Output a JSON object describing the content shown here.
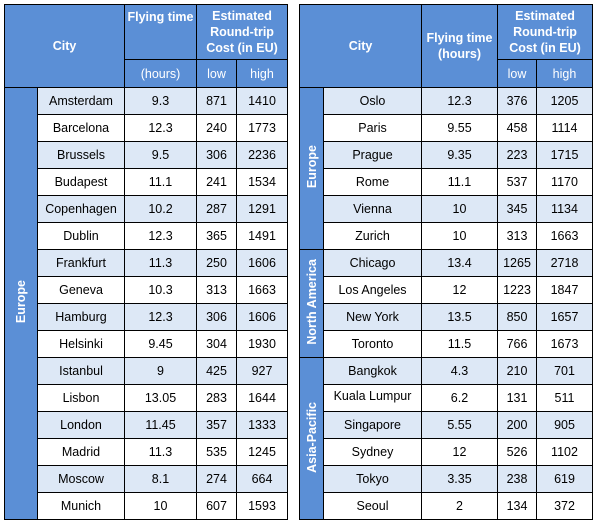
{
  "headers": {
    "city": "City",
    "flying_time": "Flying time",
    "hours": "(hours)",
    "hours_paren": "(hours)",
    "cost": "Estimated Round-trip Cost (in EU)",
    "low": "low",
    "high": "high"
  },
  "left": {
    "region": "Europe",
    "rows": [
      {
        "city": "Amsterdam",
        "time": "9.3",
        "low": "871",
        "high": "1410"
      },
      {
        "city": "Barcelona",
        "time": "12.3",
        "low": "240",
        "high": "1773"
      },
      {
        "city": "Brussels",
        "time": "9.5",
        "low": "306",
        "high": "2236"
      },
      {
        "city": "Budapest",
        "time": "11.1",
        "low": "241",
        "high": "1534"
      },
      {
        "city": "Copenhagen",
        "time": "10.2",
        "low": "287",
        "high": "1291"
      },
      {
        "city": "Dublin",
        "time": "12.3",
        "low": "365",
        "high": "1491"
      },
      {
        "city": "Frankfurt",
        "time": "11.3",
        "low": "250",
        "high": "1606"
      },
      {
        "city": "Geneva",
        "time": "10.3",
        "low": "313",
        "high": "1663"
      },
      {
        "city": "Hamburg",
        "time": "12.3",
        "low": "306",
        "high": "1606"
      },
      {
        "city": "Helsinki",
        "time": "9.45",
        "low": "304",
        "high": "1930"
      },
      {
        "city": "Istanbul",
        "time": "9",
        "low": "425",
        "high": "927"
      },
      {
        "city": "Lisbon",
        "time": "13.05",
        "low": "283",
        "high": "1644"
      },
      {
        "city": "London",
        "time": "11.45",
        "low": "357",
        "high": "1333"
      },
      {
        "city": "Madrid",
        "time": "11.3",
        "low": "535",
        "high": "1245"
      },
      {
        "city": "Moscow",
        "time": "8.1",
        "low": "274",
        "high": "664"
      },
      {
        "city": "Munich",
        "time": "10",
        "low": "607",
        "high": "1593"
      }
    ]
  },
  "right": {
    "regions": [
      "Europe",
      "North America",
      "Asia-Pacific"
    ],
    "rows": [
      {
        "city": "Oslo",
        "time": "12.3",
        "low": "376",
        "high": "1205"
      },
      {
        "city": "Paris",
        "time": "9.55",
        "low": "458",
        "high": "1114"
      },
      {
        "city": "Prague",
        "time": "9.35",
        "low": "223",
        "high": "1715"
      },
      {
        "city": "Rome",
        "time": "11.1",
        "low": "537",
        "high": "1170"
      },
      {
        "city": "Vienna",
        "time": "10",
        "low": "345",
        "high": "1134"
      },
      {
        "city": "Zurich",
        "time": "10",
        "low": "313",
        "high": "1663"
      },
      {
        "city": "Chicago",
        "time": "13.4",
        "low": "1265",
        "high": "2718"
      },
      {
        "city": "Los Angeles",
        "time": "12",
        "low": "1223",
        "high": "1847"
      },
      {
        "city": "New York",
        "time": "13.5",
        "low": "850",
        "high": "1657"
      },
      {
        "city": "Toronto",
        "time": "11.5",
        "low": "766",
        "high": "1673"
      },
      {
        "city": "Bangkok",
        "time": "4.3",
        "low": "210",
        "high": "701"
      },
      {
        "city": "Kuala Lumpur",
        "time": "6.2",
        "low": "131",
        "high": "511"
      },
      {
        "city": "Singapore",
        "time": "5.55",
        "low": "200",
        "high": "905"
      },
      {
        "city": "Sydney",
        "time": "12",
        "low": "526",
        "high": "1102"
      },
      {
        "city": "Tokyo",
        "time": "3.35",
        "low": "238",
        "high": "619"
      },
      {
        "city": "Seoul",
        "time": "2",
        "low": "134",
        "high": "372"
      }
    ]
  },
  "colors": {
    "header_bg": "#5b8fd6",
    "stripe": "#dde8f6",
    "border": "#000000"
  }
}
